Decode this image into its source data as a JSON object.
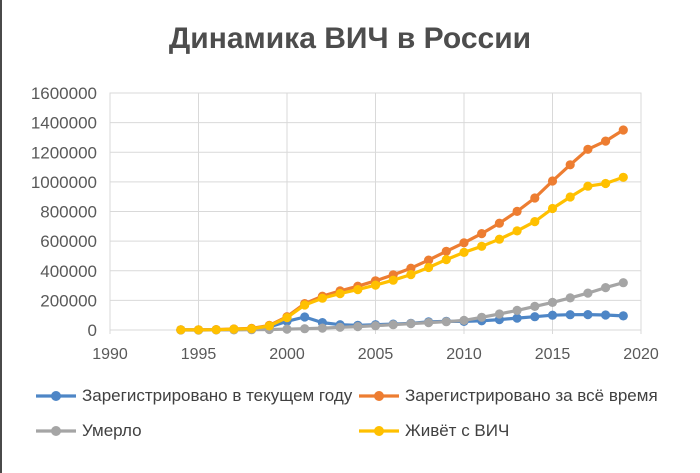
{
  "window": {
    "title": "Динамика ВИЧ в России"
  },
  "colors": {
    "grid": "#D9D9D9",
    "axis_text": "#595959",
    "title_text": "#4D4D4D",
    "legend_text": "#404040",
    "background": "#FFFFFF"
  },
  "chart_data": {
    "type": "line",
    "title": "Динамика ВИЧ в России",
    "xlabel": "",
    "ylabel": "",
    "xlim": [
      1990,
      2020
    ],
    "ylim": [
      0,
      1600000
    ],
    "xticks": [
      1990,
      1995,
      2000,
      2005,
      2010,
      2015,
      2020
    ],
    "yticks": [
      0,
      200000,
      400000,
      600000,
      800000,
      1000000,
      1200000,
      1400000,
      1600000
    ],
    "grid": true,
    "legend_position": "bottom",
    "marker": "circle",
    "x": [
      1994,
      1995,
      1996,
      1997,
      1998,
      1999,
      2000,
      2001,
      2002,
      2003,
      2004,
      2005,
      2006,
      2007,
      2008,
      2009,
      2010,
      2011,
      2012,
      2013,
      2014,
      2015,
      2016,
      2017,
      2018,
      2019
    ],
    "series": [
      {
        "id": "registered-current-year",
        "name": "Зарегистрировано в текущем году",
        "color": "#4E86C6",
        "values": [
          900,
          200,
          1500,
          4300,
          4000,
          20000,
          59000,
          88000,
          50000,
          36000,
          32000,
          36000,
          40000,
          45000,
          55000,
          59000,
          58000,
          62000,
          70000,
          80000,
          90000,
          100000,
          103000,
          104000,
          101000,
          95000
        ]
      },
      {
        "id": "registered-all-time",
        "name": "Зарегистрировано за всё время",
        "color": "#ED7D31",
        "values": [
          900,
          1100,
          2600,
          7000,
          11000,
          31000,
          90000,
          178000,
          228000,
          264000,
          296000,
          332000,
          372000,
          417000,
          472000,
          531000,
          589000,
          651000,
          721000,
          801000,
          891000,
          1006000,
          1115000,
          1220000,
          1275000,
          1350000
        ]
      },
      {
        "id": "died",
        "name": "Умерло",
        "color": "#A5A5A5",
        "values": [
          100,
          300,
          500,
          1000,
          2000,
          3500,
          6000,
          9000,
          13000,
          18000,
          23000,
          29000,
          36000,
          43000,
          50000,
          56000,
          65000,
          86000,
          108000,
          132000,
          159000,
          186000,
          217000,
          249000,
          286000,
          319000
        ]
      },
      {
        "id": "living-with-hiv",
        "name": "Живёт с ВИЧ",
        "color": "#FFC000",
        "values": [
          800,
          800,
          2100,
          6000,
          9000,
          27500,
          84000,
          169000,
          215000,
          246000,
          273000,
          303000,
          336000,
          374000,
          422000,
          475000,
          524000,
          565000,
          613000,
          669000,
          732000,
          820000,
          898000,
          971000,
          989000,
          1031000
        ]
      }
    ]
  }
}
